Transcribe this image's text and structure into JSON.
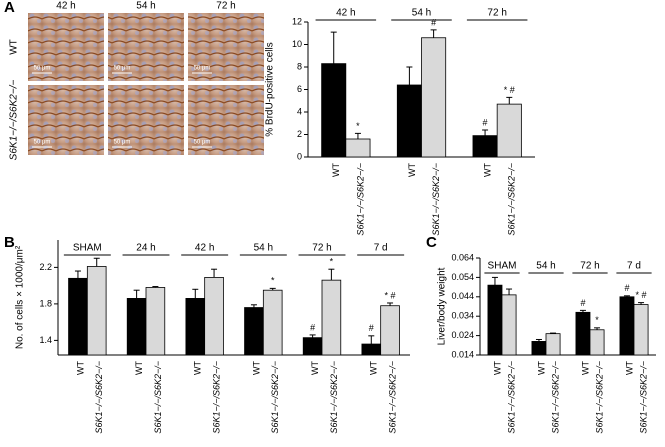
{
  "micrographs": {
    "scale_bar": "50 μm"
  },
  "chart_data": [
    {
      "type": "bar",
      "label": "A",
      "ylabel": "% BrdU-positive cells",
      "categories": [
        "42 h",
        "54 h",
        "72 h"
      ],
      "series": [
        {
          "name": "WT",
          "color": "#000000",
          "values": [
            8.3,
            6.4,
            1.9
          ],
          "errors": [
            2.8,
            1.6,
            0.5
          ],
          "annotations": [
            null,
            null,
            "#"
          ]
        },
        {
          "name": "S6K1−/−/S6K2−/−",
          "color": "#d9d9d9",
          "values": [
            1.6,
            10.6,
            4.7
          ],
          "errors": [
            0.5,
            0.7,
            0.6
          ],
          "annotations": [
            "*",
            "#",
            "* #"
          ]
        }
      ],
      "ylim": [
        0,
        12
      ],
      "yticks": [
        0,
        2,
        4,
        6,
        8,
        10,
        12
      ]
    },
    {
      "type": "bar",
      "label": "B",
      "ylabel": "No. of cells × 1000/μm²",
      "categories": [
        "SHAM",
        "24 h",
        "42 h",
        "54 h",
        "72 h",
        "7 d"
      ],
      "series": [
        {
          "name": "WT",
          "color": "#000000",
          "values": [
            2.08,
            1.86,
            1.86,
            1.76,
            1.43,
            1.36
          ],
          "errors": [
            0.08,
            0.09,
            0.1,
            0.03,
            0.03,
            0.09
          ],
          "annotations": [
            null,
            null,
            null,
            null,
            "#",
            "#"
          ]
        },
        {
          "name": "S6K1−/−/S6K2−/−",
          "color": "#d9d9d9",
          "values": [
            2.21,
            1.98,
            2.09,
            1.95,
            2.06,
            1.78
          ],
          "errors": [
            0.09,
            0.01,
            0.09,
            0.02,
            0.12,
            0.03
          ],
          "annotations": [
            null,
            null,
            null,
            "*",
            "*",
            "* #"
          ]
        }
      ],
      "ylim": [
        1.24,
        2.5
      ],
      "yticks": [
        1.4,
        1.8,
        2.2
      ]
    },
    {
      "type": "bar",
      "label": "C",
      "ylabel": "Liver/body weight",
      "categories": [
        "SHAM",
        "54 h",
        "72 h",
        "7 d"
      ],
      "series": [
        {
          "name": "WT",
          "color": "#000000",
          "values": [
            0.05,
            0.021,
            0.036,
            0.044
          ],
          "errors": [
            0.004,
            0.001,
            0.001,
            0.0005
          ],
          "annotations": [
            null,
            null,
            "#",
            "#"
          ]
        },
        {
          "name": "S6K1−/−/S6K2−/−",
          "color": "#d9d9d9",
          "values": [
            0.045,
            0.025,
            0.027,
            0.04
          ],
          "errors": [
            0.003,
            0.0003,
            0.001,
            0.001
          ],
          "annotations": [
            null,
            null,
            "*",
            "* #"
          ]
        }
      ],
      "ylim": [
        0.014,
        0.064
      ],
      "yticks": [
        0.014,
        0.024,
        0.034,
        0.044,
        0.054,
        0.064
      ]
    }
  ]
}
